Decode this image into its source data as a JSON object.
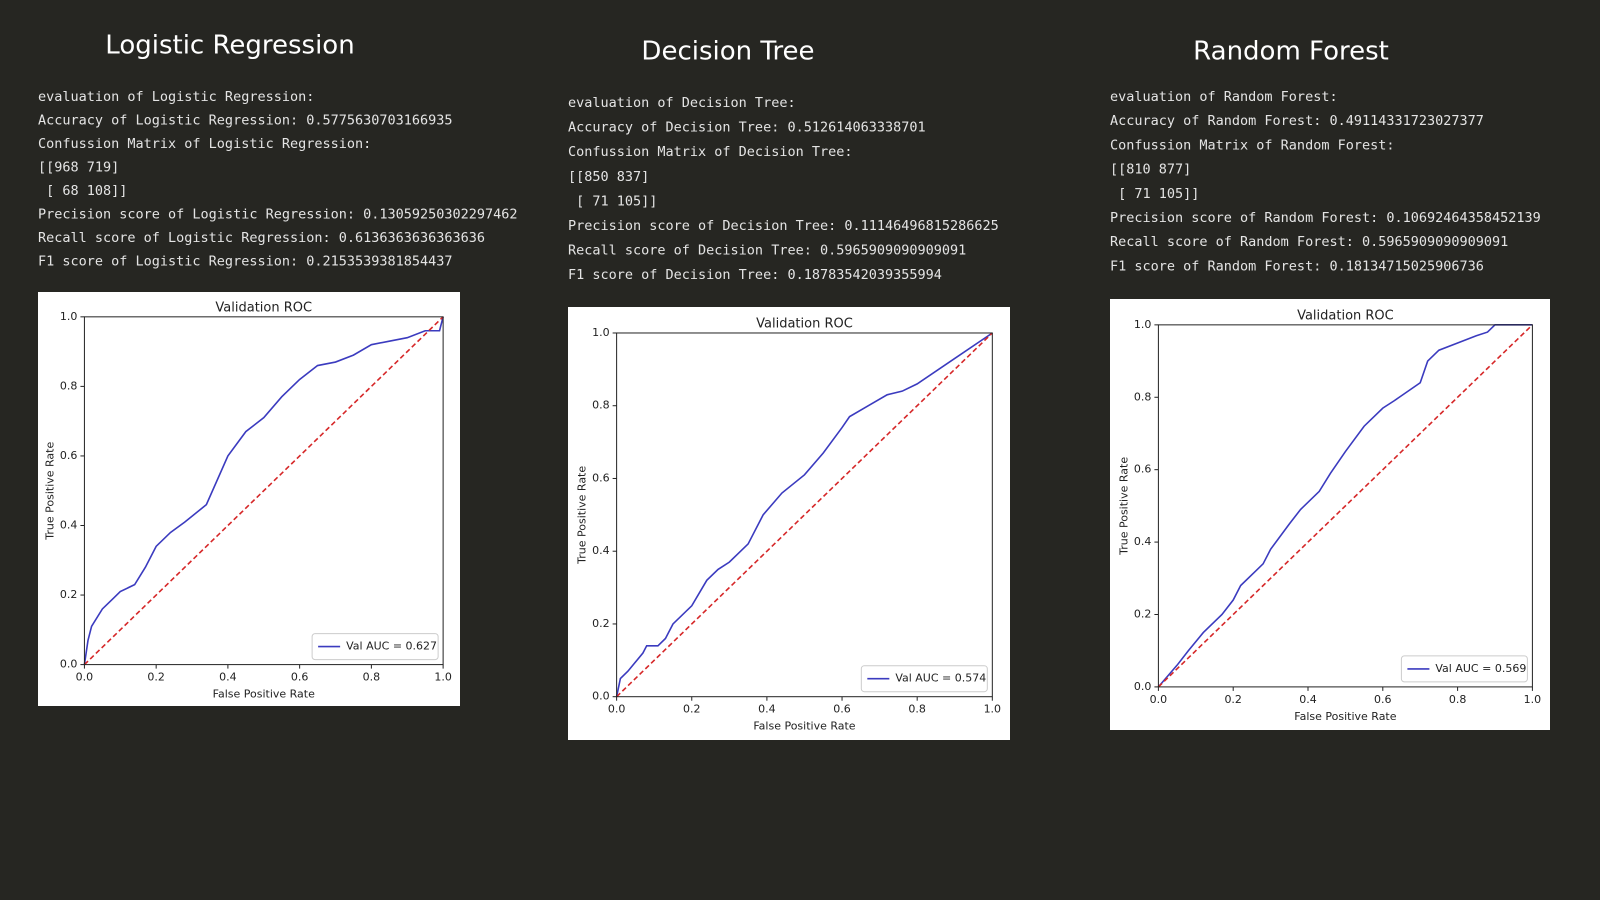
{
  "panels": [
    {
      "title": "Logistic Regression",
      "lines": [
        "evaluation of Logistic Regression:",
        "Accuracy of Logistic Regression: 0.5775630703166935",
        "Confussion Matrix of Logistic Regression:",
        "[[968 719]",
        " [ 68 108]]",
        "Precision score of Logistic Regression: 0.13059250302297462",
        "Recall score of Logistic Regression: 0.6136363636363636",
        "F1 score of Logistic Regression: 0.2153539381854437"
      ]
    },
    {
      "title": "Decision Tree",
      "lines": [
        "evaluation of Decision Tree:",
        "Accuracy of Decision Tree: 0.512614063338701",
        "Confussion Matrix of Decision Tree:",
        "[[850 837]",
        " [ 71 105]]",
        "Precision score of Decision Tree: 0.11146496815286625",
        "Recall score of Decision Tree: 0.5965909090909091",
        "F1 score of Decision Tree: 0.18783542039355994"
      ]
    },
    {
      "title": "Random Forest",
      "lines": [
        "evaluation of Random Forest:",
        "Accuracy of Random Forest: 0.49114331723027377",
        "Confussion Matrix of Random Forest:",
        "[[810 877]",
        " [ 71 105]]",
        "Precision score of Random Forest: 0.10692464358452139",
        "Recall score of Random Forest: 0.5965909090909091",
        "F1 score of Random Forest: 0.18134715025906736"
      ]
    }
  ],
  "chart_data": [
    {
      "type": "line",
      "title": "Validation ROC",
      "xlabel": "False Positive Rate",
      "ylabel": "True Positive Rate",
      "x": [
        0,
        0.01,
        0.02,
        0.05,
        0.08,
        0.1,
        0.14,
        0.17,
        0.2,
        0.24,
        0.28,
        0.34,
        0.4,
        0.45,
        0.5,
        0.55,
        0.6,
        0.65,
        0.7,
        0.75,
        0.8,
        0.85,
        0.9,
        0.95,
        0.99,
        1
      ],
      "series": [
        {
          "name": "Val AUC = 0.627",
          "color": "#3b3bbf",
          "values": [
            0,
            0.07,
            0.11,
            0.16,
            0.19,
            0.21,
            0.23,
            0.28,
            0.34,
            0.38,
            0.41,
            0.46,
            0.6,
            0.67,
            0.71,
            0.77,
            0.82,
            0.86,
            0.87,
            0.89,
            0.92,
            0.93,
            0.94,
            0.96,
            0.96,
            1
          ]
        },
        {
          "color": "#d62728",
          "dashed": true,
          "x": [
            0,
            1
          ],
          "values": [
            0,
            1
          ]
        }
      ],
      "xlim": [
        0,
        1
      ],
      "ylim": [
        0,
        1
      ],
      "xticks": [
        {
          "value": 0,
          "label": "0.0"
        },
        0.2,
        0.4,
        0.6,
        0.8,
        {
          "value": 1,
          "label": "1.0"
        }
      ],
      "yticks": [
        {
          "value": 0,
          "label": "0.0"
        },
        0.2,
        0.4,
        0.6,
        0.8,
        {
          "value": 1,
          "label": "1.0"
        }
      ],
      "legend": "lower right"
    },
    {
      "type": "line",
      "title": "Validation ROC",
      "xlabel": "False Positive Rate",
      "ylabel": "True Positive Rate",
      "x": [
        0,
        0.01,
        0.03,
        0.07,
        0.08,
        0.11,
        0.13,
        0.15,
        0.2,
        0.24,
        0.27,
        0.3,
        0.35,
        0.39,
        0.44,
        0.5,
        0.55,
        0.6,
        0.62,
        0.67,
        0.72,
        0.76,
        0.8,
        0.9,
        1
      ],
      "series": [
        {
          "name": "Val AUC = 0.574",
          "color": "#3b3bbf",
          "values": [
            0,
            0.05,
            0.07,
            0.12,
            0.14,
            0.14,
            0.16,
            0.2,
            0.25,
            0.32,
            0.35,
            0.37,
            0.42,
            0.5,
            0.56,
            0.61,
            0.67,
            0.74,
            0.77,
            0.8,
            0.83,
            0.84,
            0.86,
            0.93,
            1
          ]
        },
        {
          "color": "#d62728",
          "dashed": true,
          "x": [
            0,
            1
          ],
          "values": [
            0,
            1
          ]
        }
      ],
      "xlim": [
        0,
        1
      ],
      "ylim": [
        0,
        1
      ],
      "xticks": [
        {
          "value": 0,
          "label": "0.0"
        },
        0.2,
        0.4,
        0.6,
        0.8,
        {
          "value": 1,
          "label": "1.0"
        }
      ],
      "yticks": [
        {
          "value": 0,
          "label": "0.0"
        },
        0.2,
        0.4,
        0.6,
        0.8,
        {
          "value": 1,
          "label": "1.0"
        }
      ],
      "legend": "lower right"
    },
    {
      "type": "line",
      "title": "Validation ROC",
      "xlabel": "False Positive Rate",
      "ylabel": "True Positive Rate",
      "x": [
        0,
        0.05,
        0.08,
        0.12,
        0.17,
        0.2,
        0.22,
        0.26,
        0.28,
        0.3,
        0.35,
        0.38,
        0.43,
        0.46,
        0.5,
        0.55,
        0.6,
        0.63,
        0.7,
        0.72,
        0.75,
        0.8,
        0.85,
        0.88,
        0.9,
        1
      ],
      "series": [
        {
          "name": "Val AUC = 0.569",
          "color": "#3b3bbf",
          "values": [
            0,
            0.06,
            0.1,
            0.15,
            0.2,
            0.24,
            0.28,
            0.32,
            0.34,
            0.38,
            0.45,
            0.49,
            0.54,
            0.59,
            0.65,
            0.72,
            0.77,
            0.79,
            0.84,
            0.9,
            0.93,
            0.95,
            0.97,
            0.98,
            1,
            1
          ]
        },
        {
          "color": "#d62728",
          "dashed": true,
          "x": [
            0,
            1
          ],
          "values": [
            0,
            1
          ]
        }
      ],
      "xlim": [
        0,
        1
      ],
      "ylim": [
        0,
        1
      ],
      "xticks": [
        {
          "value": 0,
          "label": "0.0"
        },
        0.2,
        0.4,
        0.6,
        0.8,
        {
          "value": 1,
          "label": "1.0"
        }
      ],
      "yticks": [
        {
          "value": 0,
          "label": "0.0"
        },
        0.2,
        0.4,
        0.6,
        0.8,
        {
          "value": 1,
          "label": "1.0"
        }
      ],
      "legend": "lower right"
    }
  ]
}
